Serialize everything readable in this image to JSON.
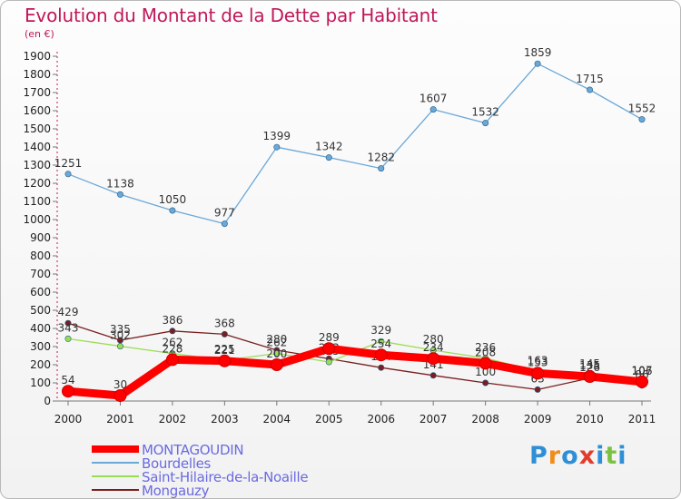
{
  "title": "Evolution du Montant de la Dette par Habitant",
  "unit": "(en €)",
  "logo": [
    "P",
    "r",
    "o",
    "x",
    "i",
    "t",
    "i"
  ],
  "logo_colors": [
    "#2f8fd6",
    "#f28c1a",
    "#2f8fd6",
    "#e23c2c",
    "#2f8fd6",
    "#7cc242",
    "#2f8fd6"
  ],
  "chart_data": {
    "type": "line",
    "title": "Evolution du Montant de la Dette par Habitant",
    "ylabel": "(en €)",
    "xlabel": "",
    "x": [
      "2000",
      "2001",
      "2002",
      "2003",
      "2004",
      "2005",
      "2006",
      "2007",
      "2008",
      "2009",
      "2010",
      "2011"
    ],
    "yticks": [
      "0",
      "100",
      "200",
      "300",
      "400",
      "500",
      "600",
      "700",
      "800",
      "900",
      "1000",
      "1100",
      "1200",
      "1300",
      "1400",
      "1500",
      "1600",
      "1700",
      "1800",
      "1900"
    ],
    "ylim": [
      0,
      1900
    ],
    "grid": false,
    "legend_position": "bottom-left",
    "series": [
      {
        "name": "Mongauzy",
        "color": "#7a1f1f",
        "values": [
          429,
          335,
          386,
          368,
          280,
          233,
          184,
          141,
          100,
          63,
          126,
          86
        ]
      },
      {
        "name": "Saint-Hilaire-de-la-Noaille",
        "color": "#99dd55",
        "values": [
          343,
          302,
          262,
          225,
          262,
          215,
          329,
          280,
          236,
          163,
          145,
          107
        ]
      },
      {
        "name": "Bourdelles",
        "color": "#6aa8d8",
        "values": [
          1251,
          1138,
          1050,
          977,
          1399,
          1342,
          1282,
          1607,
          1532,
          1859,
          1715,
          1552
        ]
      },
      {
        "name": "MONTAGOUDIN",
        "color": "#ff0000",
        "values": [
          54,
          30,
          228,
          221,
          200,
          289,
          254,
          234,
          208,
          153,
          135,
          106
        ]
      }
    ],
    "legend": [
      "MONTAGOUDIN",
      "Bourdelles",
      "Saint-Hilaire-de-la-Noaille",
      "Mongauzy"
    ]
  }
}
